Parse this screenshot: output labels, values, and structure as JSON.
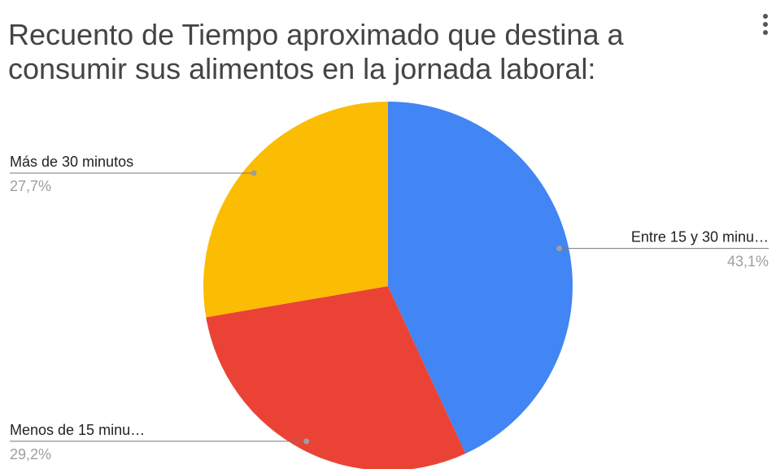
{
  "chart_data": {
    "type": "pie",
    "title": "Recuento de Tiempo aproximado que destina a consumir sus alimentos en la jornada laboral:",
    "categories": [
      "Entre 15 y 30 minu…",
      "Menos de 15 minu…",
      "Más de 30 minutos"
    ],
    "values": [
      43.1,
      29.2,
      27.7
    ],
    "value_labels": [
      "43,1%",
      "29,2%",
      "27,7%"
    ],
    "colors": [
      "#4285f4",
      "#ea4335",
      "#fbbc04"
    ]
  }
}
